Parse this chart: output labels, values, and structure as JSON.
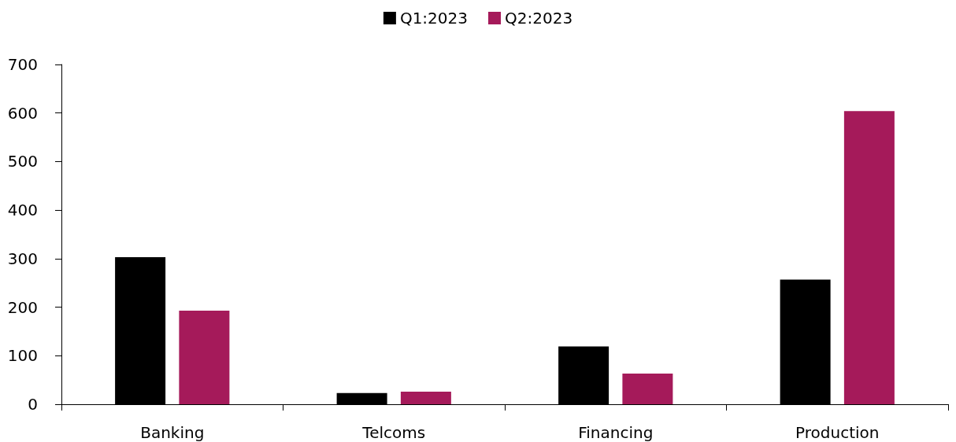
{
  "chart_data": {
    "type": "bar",
    "categories": [
      "Banking",
      "Telcoms",
      "Financing",
      "Production"
    ],
    "series": [
      {
        "name": "Q1:2023",
        "color": "#000000",
        "values": [
          303,
          23,
          119,
          257
        ]
      },
      {
        "name": "Q2:2023",
        "color": "#a51a5a",
        "values": [
          193,
          26,
          63,
          604
        ]
      }
    ],
    "ylim": [
      0,
      700
    ],
    "yticks": [
      0,
      100,
      200,
      300,
      400,
      500,
      600,
      700
    ],
    "grid": false,
    "legend": "top"
  }
}
